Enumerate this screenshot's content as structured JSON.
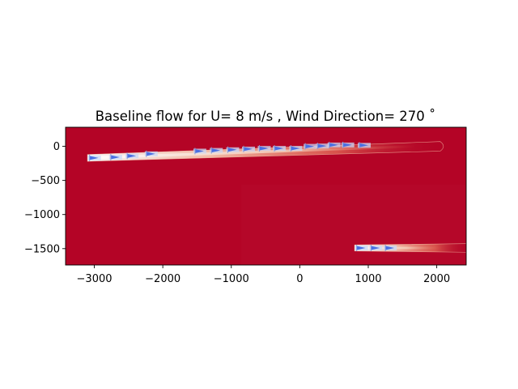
{
  "chart_data": {
    "type": "heatmap",
    "title": "Baseline flow for U= 8 m/s  ,  Wind Direction= 270  ˚",
    "xlabel": "",
    "ylabel": "",
    "xlim": [
      -3420,
      2430
    ],
    "ylim": [
      -1740,
      280
    ],
    "x_ticks": [
      -3000,
      -2000,
      -1000,
      0,
      1000,
      2000
    ],
    "y_ticks": [
      0,
      -500,
      -1000,
      -1500
    ],
    "x_tick_labels": [
      "−3000",
      "−2000",
      "−1000",
      "0",
      "1000",
      "2000"
    ],
    "y_tick_labels": [
      "0",
      "−500",
      "−1000",
      "−1500"
    ],
    "colormap": "coolwarm",
    "background_color": "#b40426",
    "grid": false,
    "legend": "none",
    "turbines": [
      {
        "x": -3070,
        "y": -170
      },
      {
        "x": -2760,
        "y": -160
      },
      {
        "x": -2520,
        "y": -140
      },
      {
        "x": -2240,
        "y": -110
      },
      {
        "x": -1530,
        "y": -70
      },
      {
        "x": -1290,
        "y": -60
      },
      {
        "x": -1050,
        "y": -50
      },
      {
        "x": -820,
        "y": -40
      },
      {
        "x": -590,
        "y": -30
      },
      {
        "x": -370,
        "y": -30
      },
      {
        "x": -130,
        "y": -30
      },
      {
        "x": 80,
        "y": 0
      },
      {
        "x": 260,
        "y": 5
      },
      {
        "x": 430,
        "y": 20
      },
      {
        "x": 630,
        "y": 20
      },
      {
        "x": 870,
        "y": 15
      },
      {
        "x": 830,
        "y": -1490
      },
      {
        "x": 1040,
        "y": -1490
      },
      {
        "x": 1250,
        "y": -1490
      }
    ],
    "wakes": [
      {
        "x_start": -3100,
        "x_end": 2050,
        "y_start": -170,
        "y_end": 0,
        "half_width": 50
      },
      {
        "x_start": 800,
        "x_end": 2430,
        "y_start": -1490,
        "y_end": -1490,
        "half_width": 45
      }
    ]
  }
}
